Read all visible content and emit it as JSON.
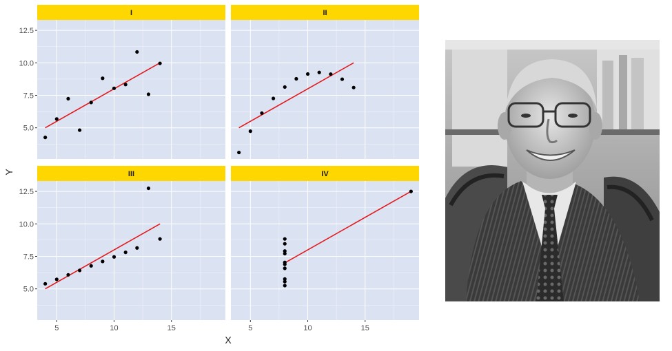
{
  "chart_data": {
    "type": "scatter",
    "xlabel": "X",
    "ylabel": "Y",
    "xlim": [
      3.3,
      19.7
    ],
    "ylim": [
      2.6,
      13.3
    ],
    "xticks": [
      5,
      10,
      15
    ],
    "yticks": [
      5.0,
      7.5,
      10.0,
      12.5
    ],
    "xtick_labels": [
      "5",
      "10",
      "15"
    ],
    "ytick_labels": [
      "5.0",
      "7.5",
      "10.0",
      "12.5"
    ],
    "grid": true,
    "facet_strip_color": "#FFD700",
    "panel_bg": "#DBE2F2",
    "point_color": "#000000",
    "line_color": "#E41A1C",
    "panels": [
      {
        "label": "I",
        "x": [
          10,
          8,
          13,
          9,
          11,
          14,
          6,
          4,
          12,
          7,
          5
        ],
        "y": [
          8.04,
          6.95,
          7.58,
          8.81,
          8.33,
          9.96,
          7.24,
          4.26,
          10.84,
          4.82,
          5.68
        ],
        "fit": {
          "x": [
            4,
            14
          ],
          "y": [
            5.0,
            10.0
          ]
        }
      },
      {
        "label": "II",
        "x": [
          10,
          8,
          13,
          9,
          11,
          14,
          6,
          4,
          12,
          7,
          5
        ],
        "y": [
          9.14,
          8.14,
          8.74,
          8.77,
          9.26,
          8.1,
          6.13,
          3.1,
          9.13,
          7.26,
          4.74
        ],
        "fit": {
          "x": [
            4,
            14
          ],
          "y": [
            5.0,
            10.0
          ]
        }
      },
      {
        "label": "III",
        "x": [
          10,
          8,
          13,
          9,
          11,
          14,
          6,
          4,
          12,
          7,
          5
        ],
        "y": [
          7.46,
          6.77,
          12.74,
          7.11,
          7.81,
          8.84,
          6.08,
          5.39,
          8.15,
          6.42,
          5.73
        ],
        "fit": {
          "x": [
            4,
            14
          ],
          "y": [
            5.0,
            10.0
          ]
        }
      },
      {
        "label": "IV",
        "x": [
          8,
          8,
          8,
          8,
          8,
          8,
          8,
          19,
          8,
          8,
          8
        ],
        "y": [
          6.58,
          5.76,
          7.71,
          8.84,
          8.47,
          7.04,
          5.25,
          12.5,
          5.56,
          7.91,
          6.89
        ],
        "fit": {
          "x": [
            8,
            19
          ],
          "y": [
            7.0,
            12.5
          ]
        }
      }
    ]
  },
  "portrait": {
    "style": "black-and-white portrait photo of a smiling older man with glasses, suit and patterned tie, bookshelf background"
  }
}
